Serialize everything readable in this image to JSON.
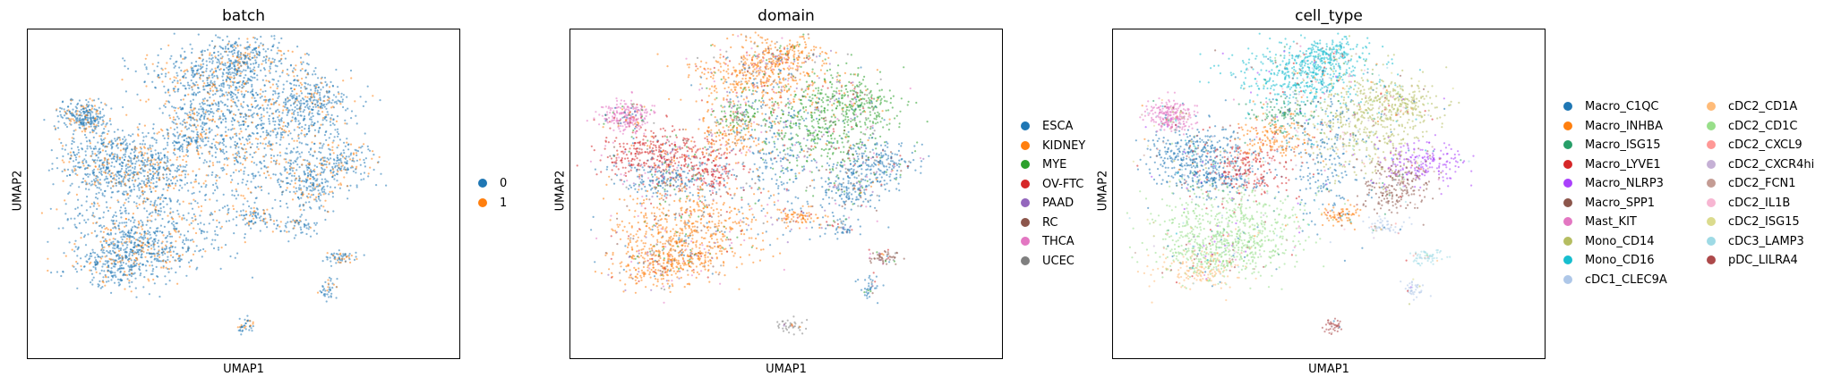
{
  "chart_data": [
    {
      "type": "scatter",
      "title": "batch",
      "xlabel": "UMAP1",
      "ylabel": "UMAP2",
      "legend": [
        "0",
        "1"
      ],
      "colors": [
        "#1f77b4",
        "#ff7f0e"
      ],
      "legend_placement": "right",
      "grid": false
    },
    {
      "type": "scatter",
      "title": "domain",
      "xlabel": "UMAP1",
      "ylabel": "UMAP2",
      "legend": [
        "ESCA",
        "KIDNEY",
        "MYE",
        "OV-FTC",
        "PAAD",
        "RC",
        "THCA",
        "UCEC"
      ],
      "colors": [
        "#1f77b4",
        "#ff7f0e",
        "#2ca02c",
        "#d62728",
        "#9467bd",
        "#8c564b",
        "#e377c2",
        "#7f7f7f"
      ],
      "legend_placement": "right",
      "grid": false
    },
    {
      "type": "scatter",
      "title": "cell_type",
      "xlabel": "UMAP1",
      "ylabel": "UMAP2",
      "legend": [
        "Macro_C1QC",
        "Macro_INHBA",
        "Macro_ISG15",
        "Macro_LYVE1",
        "Macro_NLRP3",
        "Macro_SPP1",
        "Mast_KIT",
        "Mono_CD14",
        "Mono_CD16",
        "cDC1_CLEC9A",
        "cDC2_CD1A",
        "cDC2_CD1C",
        "cDC2_CXCL9",
        "cDC2_CXCR4hi",
        "cDC2_FCN1",
        "cDC2_IL1B",
        "cDC2_ISG15",
        "cDC3_LAMP3",
        "pDC_LILRA4"
      ],
      "colors": [
        "#1f77b4",
        "#ff7f0e",
        "#279e68",
        "#d62728",
        "#aa40fc",
        "#8c564b",
        "#e377c2",
        "#b5bd61",
        "#17becf",
        "#aec7e8",
        "#ffbb78",
        "#98df8a",
        "#ff9896",
        "#c5b0d5",
        "#c49c94",
        "#f7b6d2",
        "#dbdb8d",
        "#9edae5",
        "#ad494a"
      ],
      "legend_placement": "right",
      "grid": false
    }
  ]
}
